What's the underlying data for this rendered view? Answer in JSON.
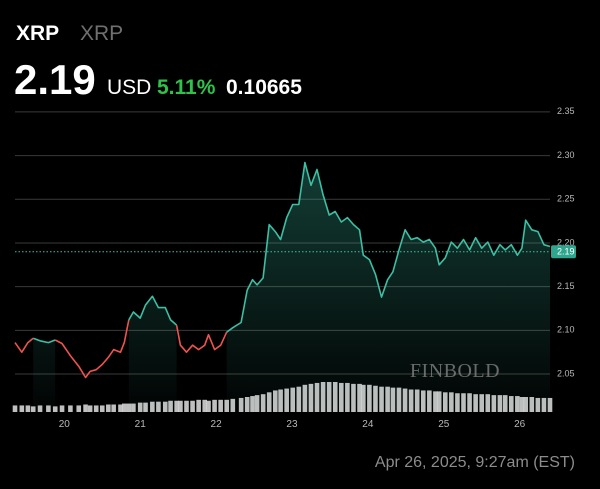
{
  "header": {
    "symbol": "XRP",
    "name": "XRP",
    "price": "2.19",
    "currency": "USD",
    "change_pct": "5.11%",
    "change": "0.10665"
  },
  "watermark": "FINBOLD",
  "timestamp": "Apr 26, 2025, 9:27am (EST)",
  "chart_data": {
    "type": "line",
    "x": [
      19.35,
      19.44,
      19.52,
      19.59,
      19.68,
      19.79,
      19.88,
      19.97,
      20.08,
      20.19,
      20.28,
      20.34,
      20.42,
      20.5,
      20.58,
      20.65,
      20.74,
      20.79,
      20.85,
      20.91,
      21.0,
      21.07,
      21.16,
      21.24,
      21.33,
      21.4,
      21.48,
      21.53,
      21.61,
      21.69,
      21.77,
      21.85,
      21.9,
      21.98,
      22.06,
      22.14,
      22.22,
      22.33,
      22.41,
      22.48,
      22.54,
      22.62,
      22.7,
      22.78,
      22.85,
      22.93,
      23.01,
      23.09,
      23.17,
      23.25,
      23.33,
      23.41,
      23.49,
      23.57,
      23.65,
      23.73,
      23.81,
      23.89,
      23.94,
      24.02,
      24.1,
      24.18,
      24.26,
      24.33,
      24.41,
      24.49,
      24.57,
      24.65,
      24.73,
      24.81,
      24.89,
      24.94,
      25.02,
      25.1,
      25.18,
      25.26,
      25.34,
      25.42,
      25.5,
      25.58,
      25.66,
      25.74,
      25.81,
      25.89,
      25.97,
      26.03,
      26.08,
      26.16,
      26.24,
      26.32,
      26.4
    ],
    "series": [
      {
        "color": "#3cbfa5",
        "fill": true,
        "values": [
          null,
          null,
          null,
          2.091,
          2.088,
          2.086,
          2.089,
          null,
          null,
          null,
          null,
          null,
          null,
          null,
          null,
          null,
          null,
          null,
          2.112,
          2.121,
          2.114,
          2.129,
          2.139,
          2.126,
          2.126,
          2.112,
          2.106,
          null,
          null,
          null,
          null,
          null,
          null,
          null,
          null,
          2.098,
          2.103,
          2.109,
          2.146,
          2.158,
          2.152,
          2.16,
          2.221,
          2.213,
          2.204,
          2.229,
          2.244,
          2.244,
          2.292,
          2.266,
          2.284,
          2.255,
          2.232,
          2.236,
          2.224,
          2.229,
          2.221,
          2.215,
          2.186,
          2.181,
          2.164,
          2.138,
          2.158,
          2.167,
          2.192,
          2.215,
          2.204,
          2.206,
          2.201,
          2.204,
          2.194,
          2.175,
          2.183,
          2.201,
          2.194,
          2.204,
          2.192,
          2.206,
          2.194,
          2.201,
          2.186,
          2.198,
          2.192,
          2.198,
          2.186,
          2.194,
          2.226,
          2.215,
          2.213,
          2.198,
          2.196
        ]
      },
      {
        "color": "#ef5350",
        "fill": false,
        "values": [
          2.086,
          2.075,
          2.086,
          2.091,
          null,
          null,
          2.089,
          2.085,
          2.071,
          2.059,
          2.046,
          2.053,
          2.055,
          2.061,
          2.069,
          2.078,
          2.075,
          2.086,
          2.112,
          null,
          null,
          null,
          null,
          null,
          null,
          null,
          2.106,
          2.083,
          2.075,
          2.083,
          2.078,
          2.083,
          2.095,
          2.078,
          2.083,
          2.098,
          null,
          null,
          null,
          null,
          null,
          null,
          null,
          null,
          null,
          null,
          null,
          null,
          null,
          null,
          null,
          null,
          null,
          null,
          null,
          null,
          null,
          null,
          null,
          null,
          null,
          null,
          null,
          null,
          null,
          null,
          null,
          null,
          null,
          null,
          null,
          null,
          null,
          null,
          null,
          null,
          null,
          null,
          null,
          null,
          null,
          null,
          null,
          null,
          null,
          null,
          null,
          null,
          null,
          null,
          null
        ]
      }
    ],
    "volume": [
      7,
      7,
      7,
      6,
      7,
      7,
      6,
      7,
      7,
      7,
      8,
      7,
      7,
      7,
      8,
      8,
      8,
      9,
      9,
      9,
      10,
      10,
      11,
      11,
      11,
      12,
      12,
      12,
      12,
      12,
      13,
      13,
      12,
      13,
      13,
      13,
      14,
      15,
      16,
      17,
      18,
      19,
      21,
      23,
      24,
      25,
      26,
      27,
      29,
      30,
      31,
      32,
      32,
      32,
      31,
      31,
      30,
      30,
      29,
      29,
      28,
      27,
      27,
      26,
      26,
      25,
      24,
      24,
      23,
      23,
      22,
      22,
      21,
      21,
      20,
      20,
      20,
      19,
      19,
      19,
      18,
      18,
      18,
      17,
      17,
      16,
      16,
      16,
      15,
      15,
      15
    ],
    "volume_color": "#d4d4d4",
    "last_price": 2.19,
    "xlim": [
      19.35,
      26.4
    ],
    "xticks": [
      20,
      21,
      22,
      23,
      24,
      25,
      26
    ],
    "ylim": [
      2.01,
      2.355
    ],
    "yticks": [
      2.05,
      {
        "value": 2.1,
        "label": "2.10"
      },
      2.15,
      {
        "value": 2.2,
        "label": "2.20"
      },
      2.25,
      {
        "value": 2.3,
        "label": "2.30"
      },
      2.35
    ],
    "grid": true
  }
}
